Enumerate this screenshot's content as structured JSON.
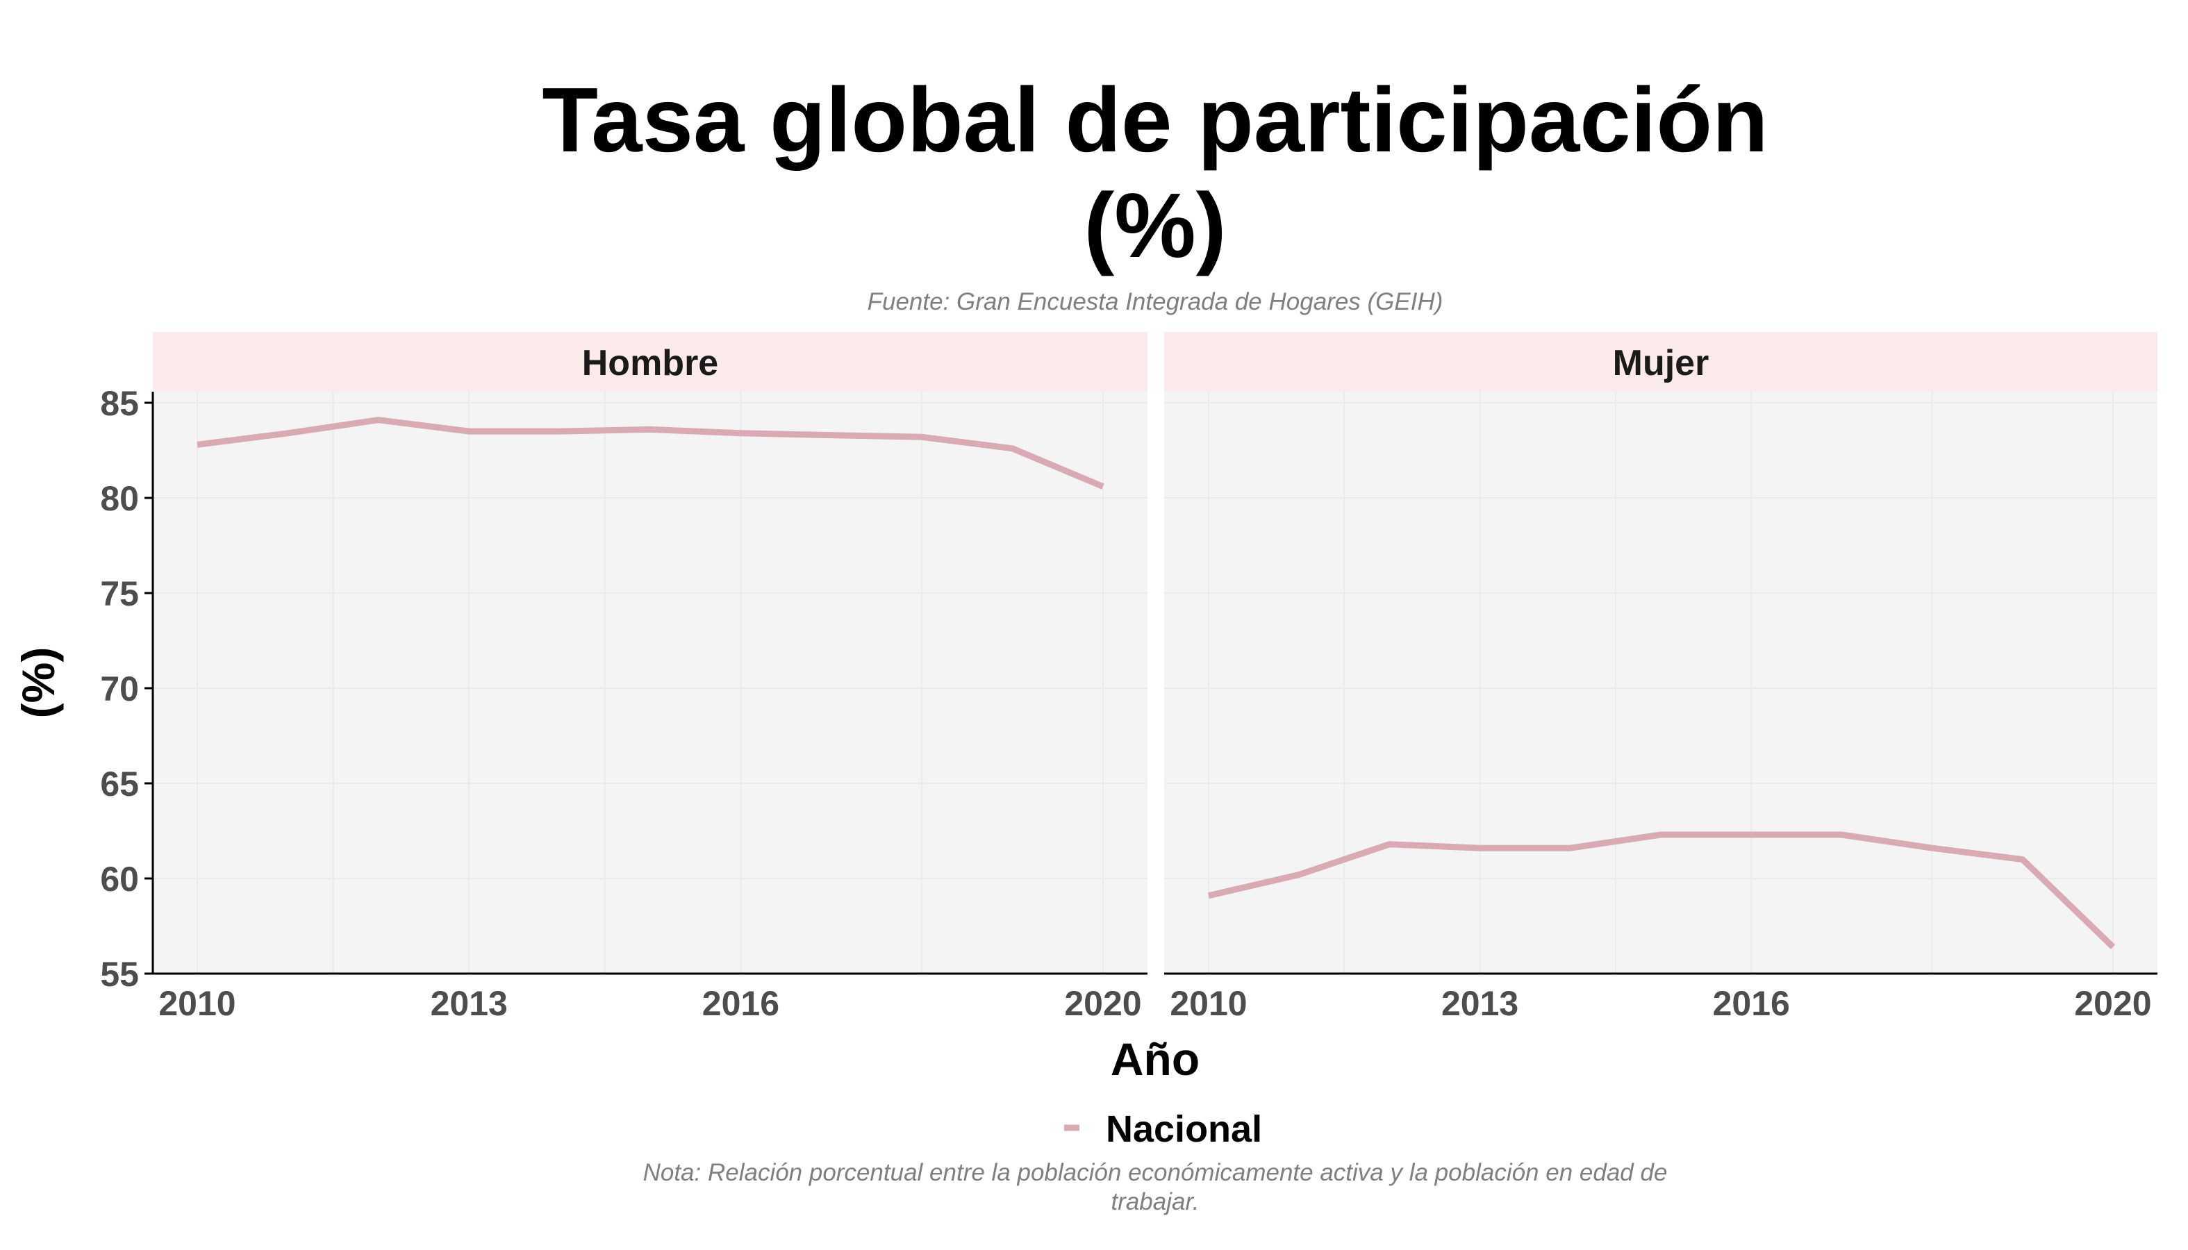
{
  "chart_data": {
    "type": "line",
    "title": "Tasa global de participación (%)",
    "title_lines": [
      "Tasa global de participación",
      "(%)"
    ],
    "subtitle": "Fuente: Gran Encuesta Integrada de Hogares (GEIH)",
    "caption_lines": [
      "Nota: Relación porcentual entre la población económicamente activa y la población en edad de",
      "trabajar."
    ],
    "xlabel": "Año",
    "ylabel": "(%)",
    "ylim": [
      55,
      85
    ],
    "yticks": [
      55,
      60,
      65,
      70,
      75,
      80,
      85
    ],
    "xlim": [
      2010,
      2020
    ],
    "xticks": [
      2010,
      2013,
      2016,
      2020
    ],
    "grid": true,
    "legend_position": "bottom",
    "legend": [
      "Nacional"
    ],
    "panels": [
      {
        "label": "Hombre",
        "x": [
          2010,
          2011,
          2012,
          2013,
          2014,
          2015,
          2016,
          2017,
          2018,
          2019,
          2020
        ],
        "series": [
          {
            "name": "Nacional",
            "values": [
              82.8,
              83.4,
              84.1,
              83.5,
              83.5,
              83.6,
              83.4,
              83.3,
              83.2,
              82.6,
              80.6
            ]
          }
        ]
      },
      {
        "label": "Mujer",
        "x": [
          2010,
          2011,
          2012,
          2013,
          2014,
          2015,
          2016,
          2017,
          2018,
          2019,
          2020
        ],
        "series": [
          {
            "name": "Nacional",
            "values": [
              59.1,
              60.2,
              61.8,
              61.6,
              61.6,
              62.3,
              62.3,
              62.3,
              61.6,
              61.0,
              56.4
            ]
          }
        ]
      }
    ]
  },
  "colors": {
    "series": "#d9a9b4",
    "strip_background": "#fbeaea",
    "panel_background": "#f4f4f4",
    "grid": "#ebebeb",
    "axis": "#000000",
    "tick_text": "#4d4d4d",
    "title_text": "#000000",
    "note_text": "#7f7f7f"
  }
}
